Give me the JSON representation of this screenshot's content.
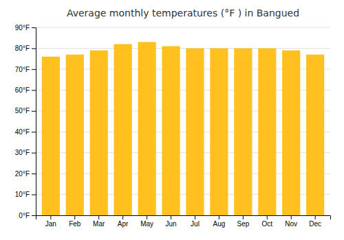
{
  "chart_data": {
    "type": "bar",
    "title": "Average monthly temperatures (°F ) in Bangued",
    "categories": [
      "Jan",
      "Feb",
      "Mar",
      "Apr",
      "May",
      "Jun",
      "Jul",
      "Aug",
      "Sep",
      "Oct",
      "Nov",
      "Dec"
    ],
    "values": [
      76,
      77,
      79,
      82,
      83,
      81,
      80,
      80,
      80,
      80,
      79,
      77
    ],
    "color": "#FFC020",
    "ylim": [
      0,
      90
    ],
    "yticks": [
      {
        "value": 0,
        "label": "0°F"
      },
      {
        "value": 10,
        "label": "10°F"
      },
      {
        "value": 20,
        "label": "20°F"
      },
      {
        "value": 30,
        "label": "30°F"
      },
      {
        "value": 40,
        "label": "40°F"
      },
      {
        "value": 50,
        "label": "50°F"
      },
      {
        "value": 60,
        "label": "60°F"
      },
      {
        "value": 70,
        "label": "70°F"
      },
      {
        "value": 80,
        "label": "80°F"
      },
      {
        "value": 90,
        "label": "90°F"
      }
    ],
    "grid": true
  }
}
